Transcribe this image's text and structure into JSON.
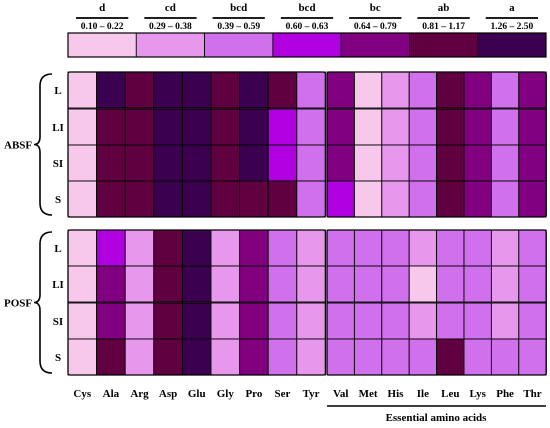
{
  "chart_data": {
    "type": "heatmap",
    "legend": {
      "letters": [
        "d",
        "cd",
        "bcd",
        "bcd",
        "bc",
        "ab",
        "a"
      ],
      "ranges": [
        "0.10 – 0.22",
        "0.29 – 0.38",
        "0.39 – 0.59",
        "0.60 – 0.63",
        "0.64 – 0.79",
        "0.81 – 1.17",
        "1.26 – 2.50"
      ],
      "colors": [
        "#f8c8ec",
        "#e898ec",
        "#d070ec",
        "#b000e0",
        "#800080",
        "#600040",
        "#3c0050"
      ]
    },
    "row_groups": [
      {
        "name": "ABSF",
        "rows": [
          "L",
          "LI",
          "SI",
          "S"
        ]
      },
      {
        "name": "POSF",
        "rows": [
          "L",
          "LI",
          "SI",
          "S"
        ]
      }
    ],
    "left_panel": {
      "columns": [
        "Cys",
        "Ala",
        "Arg",
        "Asp",
        "Glu",
        "Gly",
        "Pro",
        "Ser",
        "Tyr"
      ],
      "values": [
        [
          1,
          7,
          6,
          7,
          7,
          6,
          7,
          6,
          3
        ],
        [
          1,
          6,
          6,
          7,
          7,
          6,
          7,
          4,
          3
        ],
        [
          1,
          6,
          6,
          7,
          7,
          6,
          7,
          4,
          3
        ],
        [
          1,
          6,
          6,
          7,
          7,
          6,
          6,
          6,
          3
        ],
        [
          1,
          4,
          2,
          6,
          7,
          2,
          5,
          3,
          2
        ],
        [
          1,
          5,
          2,
          6,
          7,
          2,
          5,
          3,
          2
        ],
        [
          1,
          5,
          2,
          6,
          7,
          2,
          5,
          3,
          2
        ],
        [
          1,
          6,
          2,
          6,
          7,
          2,
          5,
          3,
          2
        ]
      ]
    },
    "right_panel": {
      "columns": [
        "Val",
        "Met",
        "His",
        "Ile",
        "Leu",
        "Lys",
        "Phe",
        "Thr"
      ],
      "group_label": "Essential amino acids",
      "values": [
        [
          5,
          1,
          2,
          3,
          6,
          5,
          3,
          5
        ],
        [
          5,
          1,
          2,
          3,
          6,
          5,
          3,
          5
        ],
        [
          5,
          1,
          2,
          3,
          6,
          5,
          3,
          5
        ],
        [
          4,
          1,
          2,
          3,
          6,
          5,
          3,
          5
        ],
        [
          3,
          3,
          3,
          2,
          3,
          3,
          2,
          3
        ],
        [
          3,
          3,
          3,
          1,
          3,
          3,
          2,
          3
        ],
        [
          3,
          3,
          3,
          2,
          3,
          3,
          2,
          3
        ],
        [
          3,
          3,
          3,
          3,
          6,
          3,
          3,
          3
        ]
      ]
    }
  }
}
